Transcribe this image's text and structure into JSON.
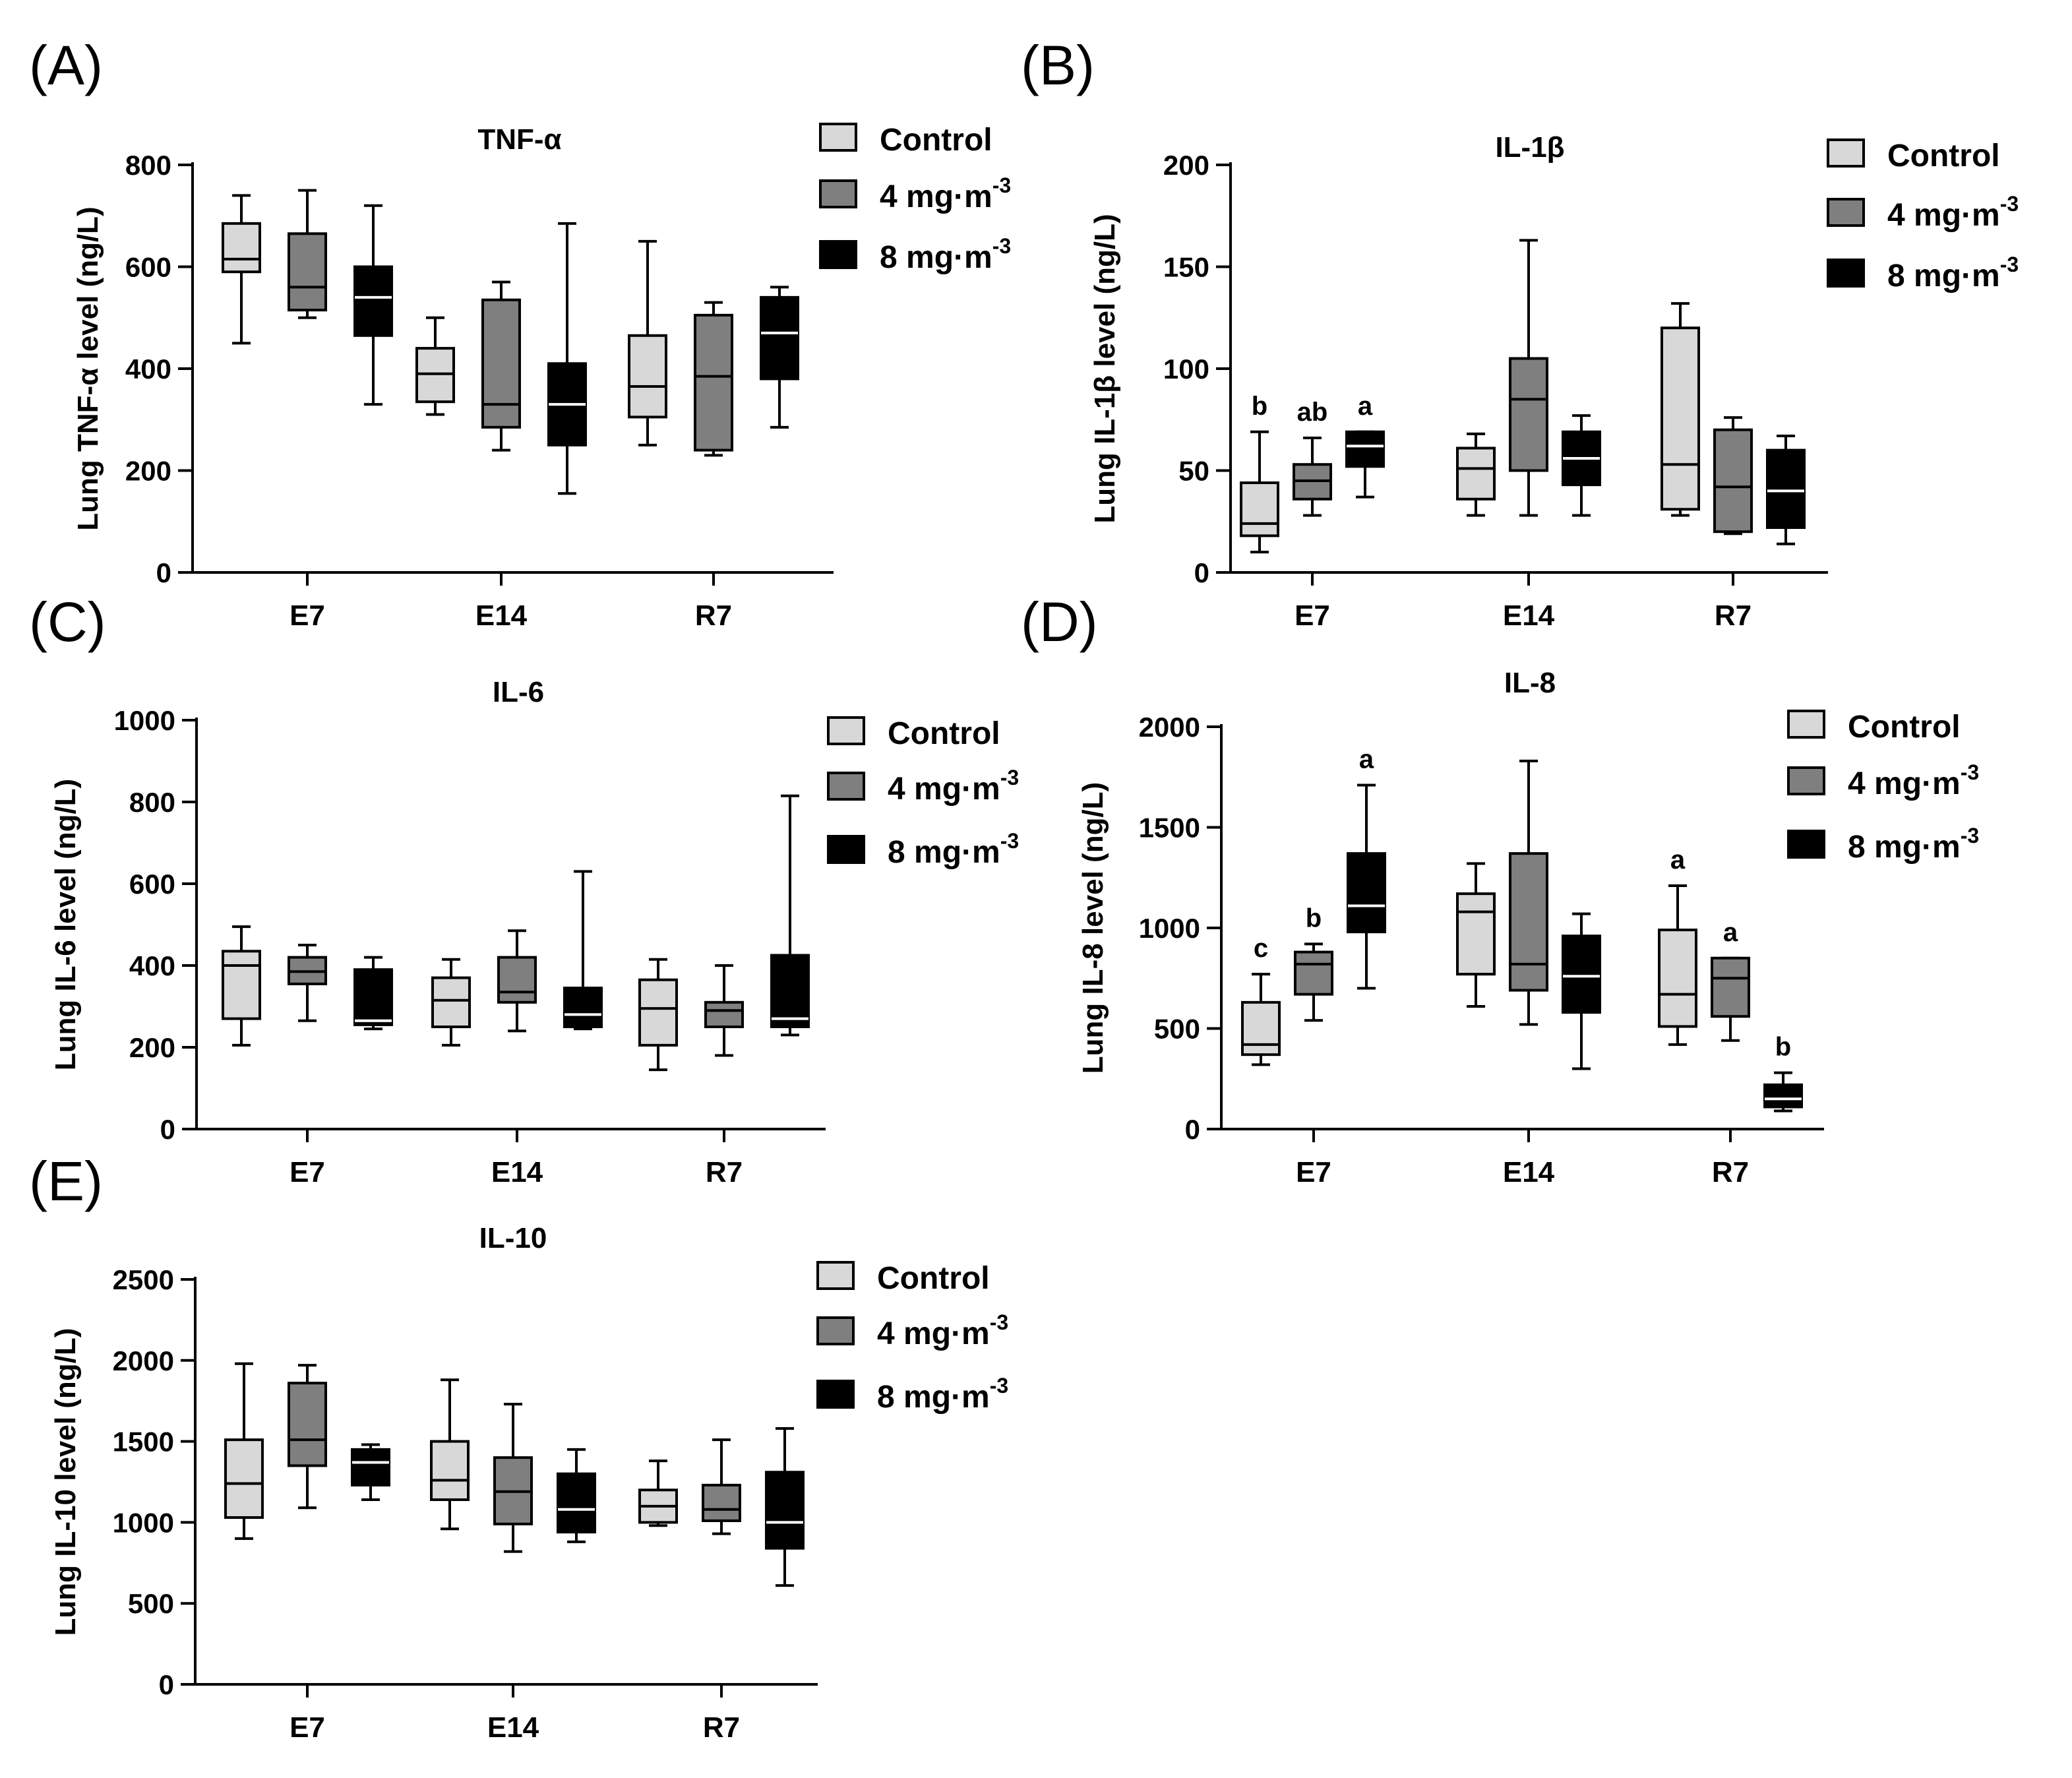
{
  "figure": {
    "groups": [
      "Control",
      "4 mg·m",
      "8 mg·m"
    ],
    "group_superscripts": [
      "",
      "-3",
      "-3"
    ],
    "group_colors": [
      "#d8d8d8",
      "#7f7f7f",
      "#000000"
    ]
  },
  "chart_data": [
    {
      "type": "box",
      "panel_label": "(A)",
      "title": "TNF-α",
      "ylabel": "Lung TNF-α level (ng/L)",
      "xlabel": "",
      "ylim": [
        0,
        800
      ],
      "yticks": [
        "0",
        "200",
        "400",
        "600",
        "800"
      ],
      "ytick_values": [
        0,
        200,
        400,
        600,
        800
      ],
      "categories": [
        "E7",
        "E14",
        "R7"
      ],
      "legend": [
        "Control",
        "4 mg·m",
        "8 mg·m"
      ],
      "legend_superscripts": [
        "",
        "-3",
        "-3"
      ],
      "series": [
        {
          "name": "Control",
          "boxes": [
            {
              "min": 450,
              "q1": 590,
              "median": 615,
              "q3": 685,
              "max": 740,
              "label": ""
            },
            {
              "min": 310,
              "q1": 335,
              "median": 390,
              "q3": 440,
              "max": 500,
              "label": ""
            },
            {
              "min": 250,
              "q1": 305,
              "median": 365,
              "q3": 465,
              "max": 650,
              "label": ""
            }
          ]
        },
        {
          "name": "4 mg·m-3",
          "boxes": [
            {
              "min": 500,
              "q1": 515,
              "median": 560,
              "q3": 665,
              "max": 750,
              "label": ""
            },
            {
              "min": 240,
              "q1": 285,
              "median": 330,
              "q3": 535,
              "max": 570,
              "label": ""
            },
            {
              "min": 230,
              "q1": 240,
              "median": 385,
              "q3": 505,
              "max": 530,
              "label": ""
            }
          ]
        },
        {
          "name": "8 mg·m-3",
          "boxes": [
            {
              "min": 330,
              "q1": 465,
              "median": 540,
              "q3": 600,
              "max": 720,
              "label": ""
            },
            {
              "min": 155,
              "q1": 250,
              "median": 330,
              "q3": 410,
              "max": 685,
              "label": ""
            },
            {
              "min": 285,
              "q1": 380,
              "median": 470,
              "q3": 540,
              "max": 560,
              "label": ""
            }
          ]
        }
      ]
    },
    {
      "type": "box",
      "panel_label": "(B)",
      "title": "IL-1β",
      "ylabel": "Lung IL-1β level (ng/L)",
      "xlabel": "",
      "ylim": [
        0,
        200
      ],
      "yticks": [
        "0",
        "50",
        "100",
        "150",
        "200"
      ],
      "ytick_values": [
        0,
        50,
        100,
        150,
        200
      ],
      "categories": [
        "E7",
        "E14",
        "R7"
      ],
      "legend": [
        "Control",
        "4 mg·m",
        "8 mg·m"
      ],
      "legend_superscripts": [
        "",
        "-3",
        "-3"
      ],
      "series": [
        {
          "name": "Control",
          "boxes": [
            {
              "min": 10,
              "q1": 18,
              "median": 24,
              "q3": 44,
              "max": 69,
              "label": "b"
            },
            {
              "min": 28,
              "q1": 36,
              "median": 51,
              "q3": 61,
              "max": 68,
              "label": ""
            },
            {
              "min": 28,
              "q1": 31,
              "median": 53,
              "q3": 120,
              "max": 132,
              "label": ""
            }
          ]
        },
        {
          "name": "4 mg·m-3",
          "boxes": [
            {
              "min": 28,
              "q1": 36,
              "median": 45,
              "q3": 53,
              "max": 66,
              "label": "ab"
            },
            {
              "min": 28,
              "q1": 50,
              "median": 85,
              "q3": 105,
              "max": 163,
              "label": ""
            },
            {
              "min": 19,
              "q1": 20,
              "median": 42,
              "q3": 70,
              "max": 76,
              "label": ""
            }
          ]
        },
        {
          "name": "8 mg·m-3",
          "boxes": [
            {
              "min": 37,
              "q1": 52,
              "median": 62,
              "q3": 69,
              "max": 69,
              "label": "a"
            },
            {
              "min": 28,
              "q1": 43,
              "median": 56,
              "q3": 69,
              "max": 77,
              "label": ""
            },
            {
              "min": 14,
              "q1": 22,
              "median": 40,
              "q3": 60,
              "max": 67,
              "label": ""
            }
          ]
        }
      ]
    },
    {
      "type": "box",
      "panel_label": "(C)",
      "title": "IL-6",
      "ylabel": "Lung IL-6 level (ng/L)",
      "xlabel": "",
      "ylim": [
        0,
        1000
      ],
      "yticks": [
        "0",
        "200",
        "400",
        "600",
        "800",
        "1000"
      ],
      "ytick_values": [
        0,
        200,
        400,
        600,
        800,
        1000
      ],
      "categories": [
        "E7",
        "E14",
        "R7"
      ],
      "legend": [
        "Control",
        "4 mg·m",
        "8 mg·m"
      ],
      "legend_superscripts": [
        "",
        "-3",
        "-3"
      ],
      "series": [
        {
          "name": "Control",
          "boxes": [
            {
              "min": 205,
              "q1": 270,
              "median": 400,
              "q3": 435,
              "max": 495,
              "label": ""
            },
            {
              "min": 205,
              "q1": 250,
              "median": 315,
              "q3": 370,
              "max": 415,
              "label": ""
            },
            {
              "min": 145,
              "q1": 205,
              "median": 295,
              "q3": 365,
              "max": 415,
              "label": ""
            }
          ]
        },
        {
          "name": "4 mg·m-3",
          "boxes": [
            {
              "min": 265,
              "q1": 355,
              "median": 385,
              "q3": 420,
              "max": 450,
              "label": ""
            },
            {
              "min": 240,
              "q1": 310,
              "median": 335,
              "q3": 420,
              "max": 485,
              "label": ""
            },
            {
              "min": 180,
              "q1": 250,
              "median": 290,
              "q3": 310,
              "max": 400,
              "label": ""
            }
          ]
        },
        {
          "name": "8 mg·m-3",
          "boxes": [
            {
              "min": 245,
              "q1": 255,
              "median": 265,
              "q3": 390,
              "max": 420,
              "label": ""
            },
            {
              "min": 245,
              "q1": 250,
              "median": 280,
              "q3": 345,
              "max": 630,
              "label": ""
            },
            {
              "min": 230,
              "q1": 250,
              "median": 270,
              "q3": 425,
              "max": 815,
              "label": ""
            }
          ]
        }
      ]
    },
    {
      "type": "box",
      "panel_label": "(D)",
      "title": "IL-8",
      "ylabel": "Lung IL-8 level (ng/L)",
      "xlabel": "",
      "ylim": [
        0,
        2000
      ],
      "yticks": [
        "0",
        "500",
        "1000",
        "1500",
        "2000"
      ],
      "ytick_values": [
        0,
        500,
        1000,
        1500,
        2000
      ],
      "categories": [
        "E7",
        "E14",
        "R7"
      ],
      "legend": [
        "Control",
        "4 mg·m",
        "8 mg·m"
      ],
      "legend_superscripts": [
        "",
        "-3",
        "-3"
      ],
      "series": [
        {
          "name": "Control",
          "boxes": [
            {
              "min": 320,
              "q1": 370,
              "median": 420,
              "q3": 630,
              "max": 770,
              "label": "c"
            },
            {
              "min": 610,
              "q1": 770,
              "median": 1080,
              "q3": 1170,
              "max": 1320,
              "label": ""
            },
            {
              "min": 420,
              "q1": 510,
              "median": 670,
              "q3": 990,
              "max": 1210,
              "label": "a"
            }
          ]
        },
        {
          "name": "4 mg·m-3",
          "boxes": [
            {
              "min": 540,
              "q1": 670,
              "median": 820,
              "q3": 880,
              "max": 920,
              "label": "b"
            },
            {
              "min": 520,
              "q1": 690,
              "median": 820,
              "q3": 1370,
              "max": 1830,
              "label": ""
            },
            {
              "min": 440,
              "q1": 560,
              "median": 750,
              "q3": 850,
              "max": 850,
              "label": "a"
            }
          ]
        },
        {
          "name": "8 mg·m-3",
          "boxes": [
            {
              "min": 700,
              "q1": 980,
              "median": 1110,
              "q3": 1370,
              "max": 1710,
              "label": "a"
            },
            {
              "min": 300,
              "q1": 580,
              "median": 760,
              "q3": 960,
              "max": 1070,
              "label": ""
            },
            {
              "min": 90,
              "q1": 110,
              "median": 150,
              "q3": 220,
              "max": 280,
              "label": "b"
            }
          ]
        }
      ]
    },
    {
      "type": "box",
      "panel_label": "(E)",
      "title": "IL-10",
      "ylabel": "Lung IL-10 level (ng/L)",
      "xlabel": "",
      "ylim": [
        0,
        2500
      ],
      "yticks": [
        "0",
        "500",
        "1000",
        "1500",
        "2000",
        "2500"
      ],
      "ytick_values": [
        0,
        500,
        1000,
        1500,
        2000,
        2500
      ],
      "categories": [
        "E7",
        "E14",
        "R7"
      ],
      "legend": [
        "Control",
        "4 mg·m",
        "8 mg·m"
      ],
      "legend_superscripts": [
        "",
        "-3",
        "-3"
      ],
      "series": [
        {
          "name": "Control",
          "boxes": [
            {
              "min": 900,
              "q1": 1030,
              "median": 1240,
              "q3": 1510,
              "max": 1980,
              "label": ""
            },
            {
              "min": 960,
              "q1": 1140,
              "median": 1260,
              "q3": 1500,
              "max": 1880,
              "label": ""
            },
            {
              "min": 980,
              "q1": 1000,
              "median": 1100,
              "q3": 1200,
              "max": 1380,
              "label": ""
            }
          ]
        },
        {
          "name": "4 mg·m-3",
          "boxes": [
            {
              "min": 1090,
              "q1": 1350,
              "median": 1510,
              "q3": 1860,
              "max": 1970,
              "label": ""
            },
            {
              "min": 820,
              "q1": 990,
              "median": 1190,
              "q3": 1400,
              "max": 1730,
              "label": ""
            },
            {
              "min": 930,
              "q1": 1010,
              "median": 1080,
              "q3": 1230,
              "max": 1510,
              "label": ""
            }
          ]
        },
        {
          "name": "8 mg·m-3",
          "boxes": [
            {
              "min": 1140,
              "q1": 1230,
              "median": 1370,
              "q3": 1450,
              "max": 1480,
              "label": ""
            },
            {
              "min": 880,
              "q1": 940,
              "median": 1080,
              "q3": 1300,
              "max": 1450,
              "label": ""
            },
            {
              "min": 610,
              "q1": 840,
              "median": 1000,
              "q3": 1310,
              "max": 1580,
              "label": ""
            }
          ]
        }
      ]
    }
  ]
}
